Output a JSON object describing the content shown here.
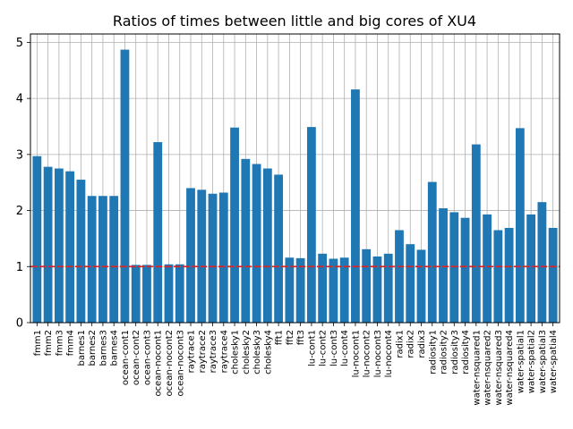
{
  "chart_data": {
    "type": "bar",
    "title": "Ratios of times between little and big cores of XU4",
    "xlabel": "",
    "ylabel": "",
    "ylim": [
      0,
      5.15
    ],
    "yticks": [
      0,
      1,
      2,
      3,
      4,
      5
    ],
    "grid": true,
    "bar_color": "#1f77b4",
    "reference_line": {
      "y": 1,
      "color": "#d62728",
      "style": "dashed"
    },
    "categories": [
      "fmm1",
      "fmm2",
      "fmm3",
      "fmm4",
      "barnes1",
      "barnes2",
      "barnes3",
      "barnes4",
      "ocean-cont1",
      "ocean-cont2",
      "ocean-cont3",
      "ocean-nocont1",
      "ocean-nocont2",
      "ocean-nocont3",
      "raytrace1",
      "raytrace2",
      "raytrace3",
      "raytrace4",
      "cholesky1",
      "cholesky2",
      "cholesky3",
      "cholesky4",
      "fft1",
      "fft2",
      "fft3",
      "lu-cont1",
      "lu-cont2",
      "lu-cont3",
      "lu-cont4",
      "lu-nocont1",
      "lu-nocont2",
      "lu-nocont3",
      "lu-nocont4",
      "radix1",
      "radix2",
      "radix3",
      "radiosity1",
      "radiosity2",
      "radiosity3",
      "radiosity4",
      "water-nsquared1",
      "water-nsquared2",
      "water-nsquared3",
      "water-nsquared4",
      "water-spatial1",
      "water-spatial2",
      "water-spatial3",
      "water-spatial4"
    ],
    "values": [
      2.97,
      2.78,
      2.75,
      2.7,
      2.55,
      2.26,
      2.26,
      2.26,
      4.87,
      1.03,
      1.03,
      3.22,
      1.04,
      1.04,
      2.4,
      2.37,
      2.3,
      2.32,
      3.48,
      2.92,
      2.83,
      2.75,
      2.64,
      1.16,
      1.15,
      3.49,
      1.23,
      1.14,
      1.16,
      4.16,
      1.31,
      1.18,
      1.23,
      1.65,
      1.4,
      1.3,
      2.51,
      2.04,
      1.97,
      1.87,
      3.18,
      1.93,
      1.65,
      1.69,
      3.47,
      1.93,
      2.15,
      1.69
    ]
  }
}
